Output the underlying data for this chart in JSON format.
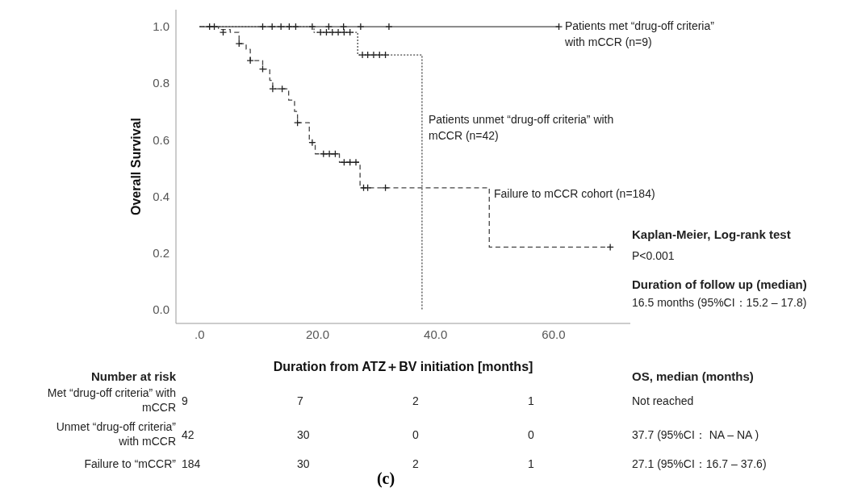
{
  "chart_data": {
    "type": "step",
    "xlabel": "Duration from ATZ＋BV initiation  [months]",
    "ylabel": "Overall Survival",
    "xlim": [
      -4,
      73
    ],
    "ylim": [
      -0.05,
      1.06
    ],
    "xticks": [
      {
        "value": 0,
        "label": ".0"
      },
      {
        "value": 20,
        "label": "20.0"
      },
      {
        "value": 40,
        "label": "40.0"
      },
      {
        "value": 60,
        "label": "60.0"
      }
    ],
    "yticks": [
      {
        "value": 0,
        "label": "0.0"
      },
      {
        "value": 0.2,
        "label": "0.2"
      },
      {
        "value": 0.4,
        "label": "0.4"
      },
      {
        "value": 0.6,
        "label": "0.6"
      },
      {
        "value": 0.8,
        "label": "0.8"
      },
      {
        "value": 1,
        "label": "1.0"
      }
    ],
    "series": [
      {
        "name": "Patients met “drug-off criteria” with mCCR (n=9)",
        "color": "#444444",
        "line_style": "solid",
        "x": [
          0,
          60.9
        ],
        "values": [
          1,
          1
        ]
      },
      {
        "name": "Patients unmet “drug-off criteria” with mCCR (n=42)",
        "color": "#444444",
        "line_style": "dotted",
        "x": [
          0,
          19.4,
          26.8,
          37.7
        ],
        "values": [
          1,
          0.98,
          0.9,
          0
        ]
      },
      {
        "name": "Failure to mCCR cohort (n=184)",
        "color": "#444444",
        "line_style": "dashed",
        "x": [
          0,
          3.2,
          5.2,
          6.7,
          7.9,
          8.6,
          10.7,
          11.9,
          12.4,
          15.1,
          16.1,
          16.6,
          18.6,
          19.6,
          23.7,
          27.2,
          49.1,
          69.6
        ],
        "values": [
          1,
          0.99,
          0.98,
          0.94,
          0.92,
          0.88,
          0.85,
          0.81,
          0.78,
          0.74,
          0.7,
          0.66,
          0.59,
          0.55,
          0.52,
          0.43,
          0.22,
          0.22
        ]
      },
      {
        "type": "scatter",
        "marker": "cross",
        "color": "#222222",
        "x": [
          1.7,
          2.5,
          10.7,
          12.3,
          13.8,
          15.2,
          16.3,
          19.1,
          21.9,
          24.4,
          27.3,
          32.1,
          60.9
        ],
        "values": [
          1,
          1,
          1,
          1,
          1,
          1,
          1,
          1,
          1,
          1,
          1,
          1,
          1
        ]
      },
      {
        "type": "scatter",
        "marker": "cross",
        "color": "#222222",
        "x": [
          20.5,
          21.5,
          22.5,
          23.5,
          24.5,
          25.5,
          27.6,
          28.5,
          29.5,
          30.5,
          31.5
        ],
        "values": [
          0.98,
          0.98,
          0.98,
          0.98,
          0.98,
          0.98,
          0.9,
          0.9,
          0.9,
          0.9,
          0.9
        ]
      },
      {
        "type": "scatter",
        "marker": "cross",
        "color": "#222222",
        "x": [
          4,
          6.7,
          8.6,
          10.7,
          12.4,
          14,
          16.6,
          19.1,
          21,
          22,
          23,
          24.5,
          25.5,
          26.5,
          27.8,
          28.5,
          31.5,
          69.6
        ],
        "values": [
          0.98,
          0.94,
          0.88,
          0.85,
          0.78,
          0.78,
          0.66,
          0.59,
          0.55,
          0.55,
          0.55,
          0.52,
          0.52,
          0.52,
          0.43,
          0.43,
          0.43,
          0.22
        ]
      }
    ],
    "annotations": [
      "Kaplan-Meier, Log-rank test",
      "P<0.001",
      "Duration of follow up (median)",
      "16.5 months (95%CI：15.2 – 17.8)",
      "Number at risk",
      "OS, median (months)",
      "Met “drug-off criteria” with mCCR",
      "9",
      "7",
      "2",
      "1",
      "Not reached",
      "Unmet “drug-off criteria” with mCCR",
      "42",
      "30",
      "0",
      "0",
      "37.7 (95%CI： NA – NA )",
      "Failure to “mCCR”",
      "184",
      "30",
      "2",
      "1",
      "27.1 (95%CI：16.7 – 37.6)",
      "(c)"
    ]
  }
}
